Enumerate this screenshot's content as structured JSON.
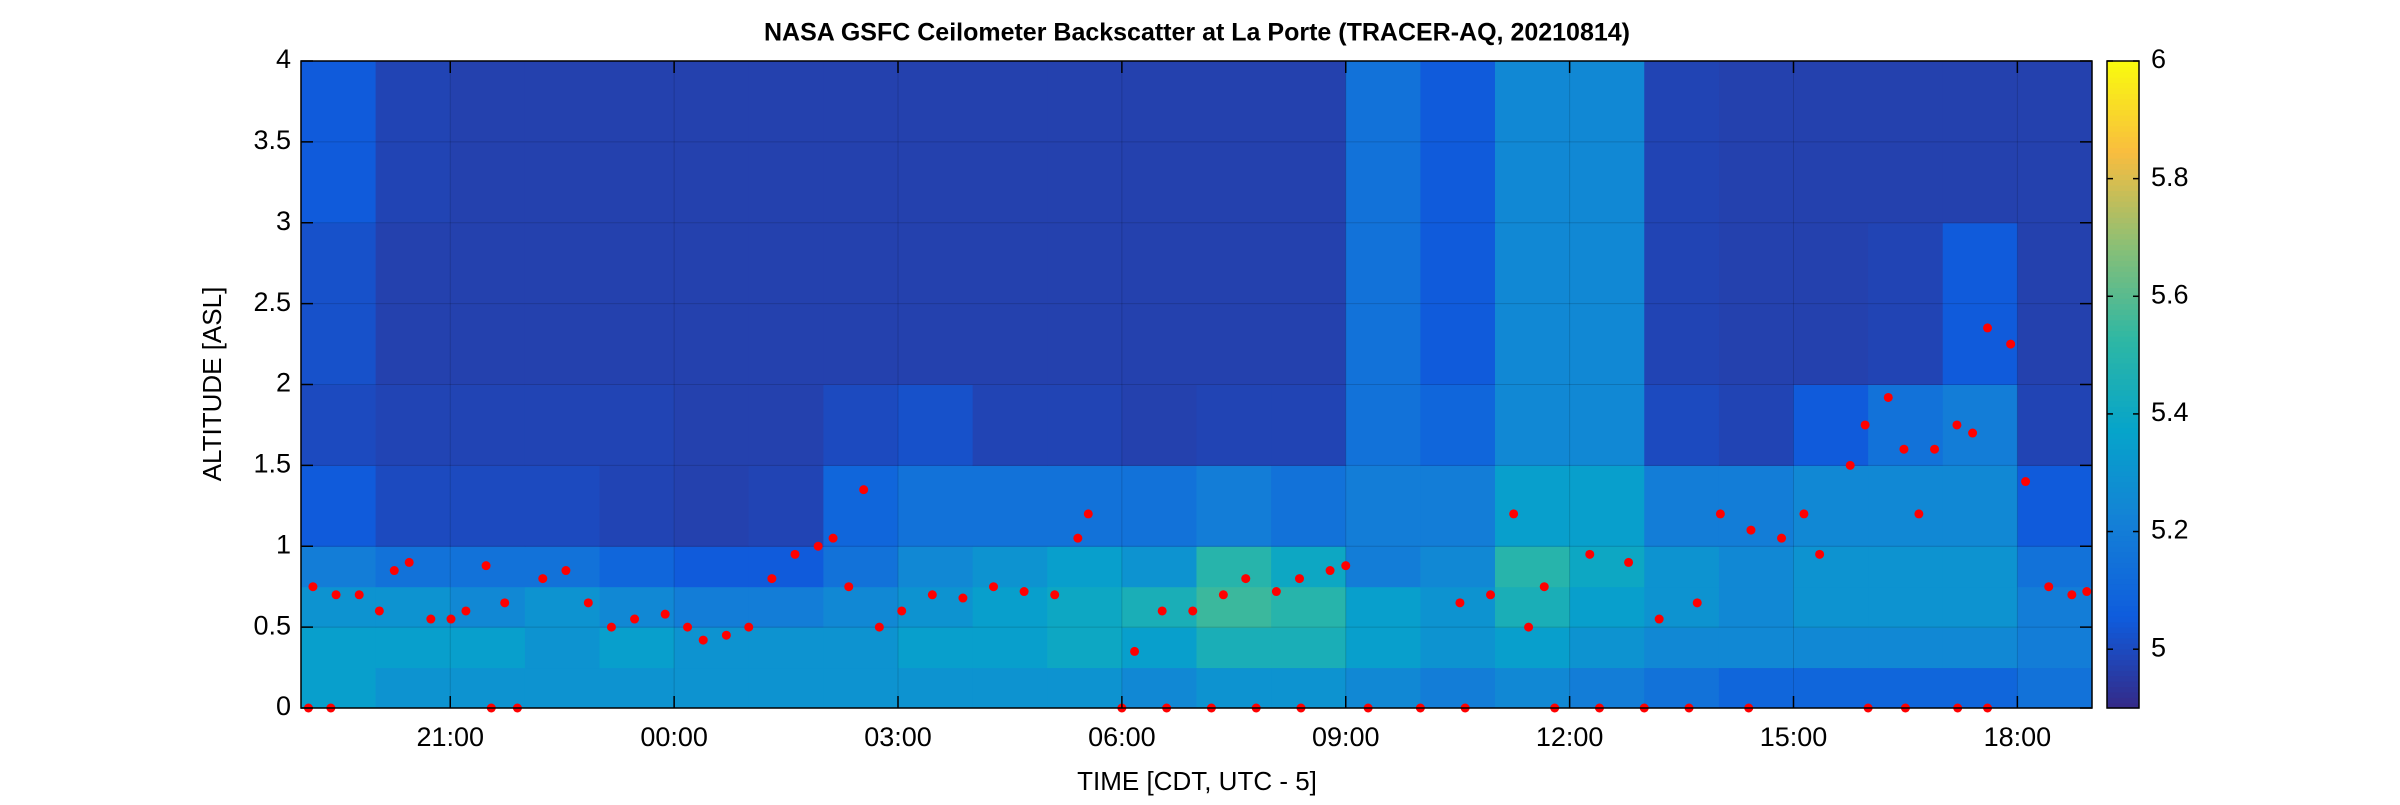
{
  "chart_data": {
    "type": "heatmap",
    "title": "NASA GSFC Ceilometer Backscatter at La Porte (TRACER-AQ, 20210814)",
    "xlabel": "TIME [CDT, UTC - 5]",
    "ylabel": "ALTITUDE [ASL]",
    "xlim": [
      19,
      43
    ],
    "ylim": [
      0,
      4
    ],
    "xticks": [
      {
        "value": 21,
        "label": "21:00"
      },
      {
        "value": 24,
        "label": "00:00"
      },
      {
        "value": 27,
        "label": "03:00"
      },
      {
        "value": 30,
        "label": "06:00"
      },
      {
        "value": 33,
        "label": "09:00"
      },
      {
        "value": 36,
        "label": "12:00"
      },
      {
        "value": 39,
        "label": "15:00"
      },
      {
        "value": 42,
        "label": "18:00"
      }
    ],
    "yticks": [
      0,
      0.5,
      1,
      1.5,
      2,
      2.5,
      3,
      3.5,
      4
    ],
    "grid": true,
    "colormap": "parula",
    "clim": [
      4.9,
      6
    ],
    "cticks": [
      5,
      5.2,
      5.4,
      5.6,
      5.8,
      6
    ],
    "x_bins": [
      19,
      20,
      21,
      22,
      23,
      24,
      25,
      26,
      27,
      28,
      29,
      30,
      31,
      32,
      33,
      34,
      35,
      36,
      37,
      38,
      39,
      40,
      41,
      42,
      43
    ],
    "y_bins": [
      0,
      0.25,
      0.5,
      0.75,
      1,
      1.5,
      2,
      3,
      4
    ],
    "z": [
      [
        5.35,
        5.3,
        5.3,
        5.3,
        5.3,
        5.3,
        5.3,
        5.3,
        5.3,
        5.3,
        5.3,
        5.25,
        5.3,
        5.3,
        5.25,
        5.2,
        5.25,
        5.2,
        5.15,
        5.1,
        5.1,
        5.1,
        5.1,
        5.15
      ],
      [
        5.35,
        5.35,
        5.35,
        5.3,
        5.35,
        5.3,
        5.3,
        5.3,
        5.35,
        5.35,
        5.4,
        5.35,
        5.45,
        5.45,
        5.35,
        5.3,
        5.35,
        5.3,
        5.25,
        5.25,
        5.25,
        5.25,
        5.25,
        5.2
      ],
      [
        5.3,
        5.3,
        5.25,
        5.3,
        5.25,
        5.2,
        5.2,
        5.25,
        5.3,
        5.35,
        5.4,
        5.45,
        5.55,
        5.5,
        5.35,
        5.3,
        5.45,
        5.35,
        5.3,
        5.25,
        5.3,
        5.3,
        5.3,
        5.2
      ],
      [
        5.2,
        5.15,
        5.15,
        5.15,
        5.1,
        5.05,
        5.05,
        5.15,
        5.25,
        5.3,
        5.35,
        5.3,
        5.5,
        5.4,
        5.2,
        5.25,
        5.5,
        5.4,
        5.3,
        5.25,
        5.3,
        5.3,
        5.3,
        5.15
      ],
      [
        5.05,
        5.0,
        5.0,
        5.0,
        4.98,
        4.97,
        4.98,
        5.1,
        5.15,
        5.15,
        5.15,
        5.15,
        5.2,
        5.15,
        5.2,
        5.2,
        5.35,
        5.35,
        5.2,
        5.2,
        5.25,
        5.25,
        5.25,
        5.05
      ],
      [
        5.0,
        4.98,
        4.98,
        4.98,
        4.98,
        4.97,
        4.97,
        5.0,
        5.02,
        4.98,
        4.98,
        4.97,
        4.98,
        4.98,
        5.15,
        5.1,
        5.25,
        5.25,
        5.0,
        4.98,
        5.05,
        5.15,
        5.2,
        4.98
      ],
      [
        5.02,
        4.97,
        4.97,
        4.97,
        4.97,
        4.97,
        4.97,
        4.97,
        4.97,
        4.97,
        4.97,
        4.97,
        4.97,
        4.97,
        5.15,
        5.05,
        5.25,
        5.25,
        4.98,
        4.97,
        4.97,
        4.98,
        5.05,
        4.97
      ],
      [
        5.05,
        4.98,
        4.97,
        4.97,
        4.97,
        4.97,
        4.97,
        4.97,
        4.97,
        4.97,
        4.97,
        4.97,
        4.97,
        4.97,
        5.15,
        5.05,
        5.25,
        5.25,
        4.98,
        4.97,
        4.97,
        4.97,
        4.97,
        4.97
      ]
    ],
    "points": {
      "color": "#ff0000",
      "x": [
        19.16,
        19.47,
        19.78,
        20.05,
        20.25,
        20.45,
        20.74,
        21.01,
        21.21,
        21.48,
        21.73,
        22.24,
        22.55,
        22.85,
        23.16,
        23.47,
        23.88,
        24.18,
        24.39,
        24.7,
        25.0,
        25.31,
        25.62,
        25.93,
        26.13,
        26.34,
        26.54,
        26.75,
        27.05,
        27.46,
        27.87,
        28.28,
        28.69,
        29.1,
        29.41,
        29.55,
        30.17,
        30.54,
        30.95,
        31.36,
        31.66,
        32.07,
        32.38,
        32.79,
        33.0,
        34.53,
        34.94,
        35.25,
        35.45,
        35.66,
        36.27,
        36.79,
        37.2,
        37.71,
        38.02,
        38.43,
        38.84,
        39.14,
        39.35,
        39.76,
        39.96,
        40.27,
        40.48,
        40.68,
        40.89,
        41.19,
        41.4,
        41.6,
        41.91,
        42.11,
        42.42,
        42.73,
        42.93,
        19.1,
        19.4,
        21.55,
        21.9,
        30.0,
        30.6,
        31.2,
        31.8,
        32.4,
        33.3,
        34.0,
        34.6,
        35.8,
        36.4,
        37.0,
        37.6,
        38.4,
        40.0,
        40.5,
        41.2,
        41.6
      ],
      "values": [
        0.75,
        0.7,
        0.7,
        0.6,
        0.85,
        0.9,
        0.55,
        0.55,
        0.6,
        0.88,
        0.65,
        0.8,
        0.85,
        0.65,
        0.5,
        0.55,
        0.58,
        0.5,
        0.42,
        0.45,
        0.5,
        0.8,
        0.95,
        1.0,
        1.05,
        0.75,
        1.35,
        0.5,
        0.6,
        0.7,
        0.68,
        0.75,
        0.72,
        0.7,
        1.05,
        1.2,
        0.35,
        0.6,
        0.6,
        0.7,
        0.8,
        0.72,
        0.8,
        0.85,
        0.88,
        0.65,
        0.7,
        1.2,
        0.5,
        0.75,
        0.95,
        0.9,
        0.55,
        0.65,
        1.2,
        1.1,
        1.05,
        1.2,
        0.95,
        1.5,
        1.75,
        1.92,
        1.6,
        1.2,
        1.6,
        1.75,
        1.7,
        2.35,
        2.25,
        1.4,
        0.75,
        0.7,
        0.72,
        0,
        0,
        0,
        0,
        0,
        0,
        0,
        0,
        0,
        0,
        0,
        0,
        0,
        0,
        0,
        0,
        0,
        0,
        0,
        0,
        0
      ]
    }
  }
}
